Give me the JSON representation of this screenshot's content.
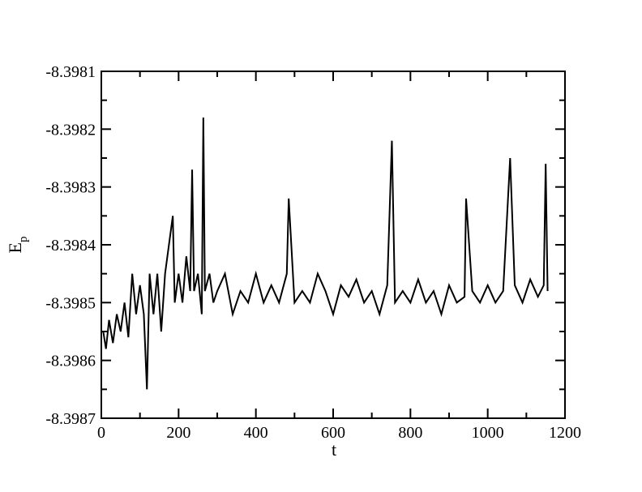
{
  "chart_data": {
    "type": "line",
    "title": "",
    "xlabel": "t",
    "ylabel": {
      "main": "E",
      "subscript": "p"
    },
    "xlim": [
      0,
      1200
    ],
    "ylim": [
      -8.3987,
      -8.3981
    ],
    "xticks": [
      0,
      200,
      400,
      600,
      800,
      1000,
      1200
    ],
    "xtick_labels": [
      "0",
      "200",
      "400",
      "600",
      "800",
      "1000",
      "1200"
    ],
    "yticks": [
      -8.3981,
      -8.3982,
      -8.3983,
      -8.3984,
      -8.3985,
      -8.3986,
      -8.3987
    ],
    "ytick_labels": [
      "-8.3981",
      "-8.3982",
      "-8.3983",
      "-8.3984",
      "-8.3985",
      "-8.3986",
      "-8.3987"
    ],
    "grid": false,
    "legend": "none",
    "line_color": "#000000",
    "series": [
      {
        "x": [
          5,
          12,
          20,
          30,
          40,
          50,
          60,
          70,
          80,
          90,
          100,
          110,
          118,
          125,
          135,
          145,
          155,
          160,
          165,
          175,
          185,
          190,
          200,
          210,
          220,
          230,
          235,
          240,
          250,
          260,
          264,
          268,
          280,
          290,
          300,
          320,
          340,
          360,
          380,
          400,
          420,
          440,
          460,
          480,
          485,
          500,
          520,
          540,
          560,
          580,
          600,
          620,
          640,
          660,
          680,
          700,
          720,
          740,
          752,
          760,
          780,
          800,
          820,
          840,
          860,
          880,
          900,
          920,
          940,
          944,
          960,
          980,
          1000,
          1020,
          1040,
          1058,
          1070,
          1090,
          1110,
          1130,
          1145,
          1150,
          1155
        ],
        "y": [
          -8.39855,
          -8.39858,
          -8.39853,
          -8.39857,
          -8.39852,
          -8.39855,
          -8.3985,
          -8.39856,
          -8.39845,
          -8.39852,
          -8.39847,
          -8.39852,
          -8.39865,
          -8.39845,
          -8.39852,
          -8.39845,
          -8.39855,
          -8.3985,
          -8.39845,
          -8.3984,
          -8.39835,
          -8.3985,
          -8.39845,
          -8.3985,
          -8.39842,
          -8.39848,
          -8.39827,
          -8.39848,
          -8.39845,
          -8.39852,
          -8.39818,
          -8.39848,
          -8.39845,
          -8.3985,
          -8.39848,
          -8.39845,
          -8.39852,
          -8.39848,
          -8.3985,
          -8.39845,
          -8.3985,
          -8.39847,
          -8.3985,
          -8.39845,
          -8.39832,
          -8.3985,
          -8.39848,
          -8.3985,
          -8.39845,
          -8.39848,
          -8.39852,
          -8.39847,
          -8.39849,
          -8.39846,
          -8.3985,
          -8.39848,
          -8.39852,
          -8.39847,
          -8.39822,
          -8.3985,
          -8.39848,
          -8.3985,
          -8.39846,
          -8.3985,
          -8.39848,
          -8.39852,
          -8.39847,
          -8.3985,
          -8.39849,
          -8.39832,
          -8.39848,
          -8.3985,
          -8.39847,
          -8.3985,
          -8.39848,
          -8.39825,
          -8.39847,
          -8.3985,
          -8.39846,
          -8.39849,
          -8.39847,
          -8.39826,
          -8.39848
        ]
      }
    ]
  }
}
